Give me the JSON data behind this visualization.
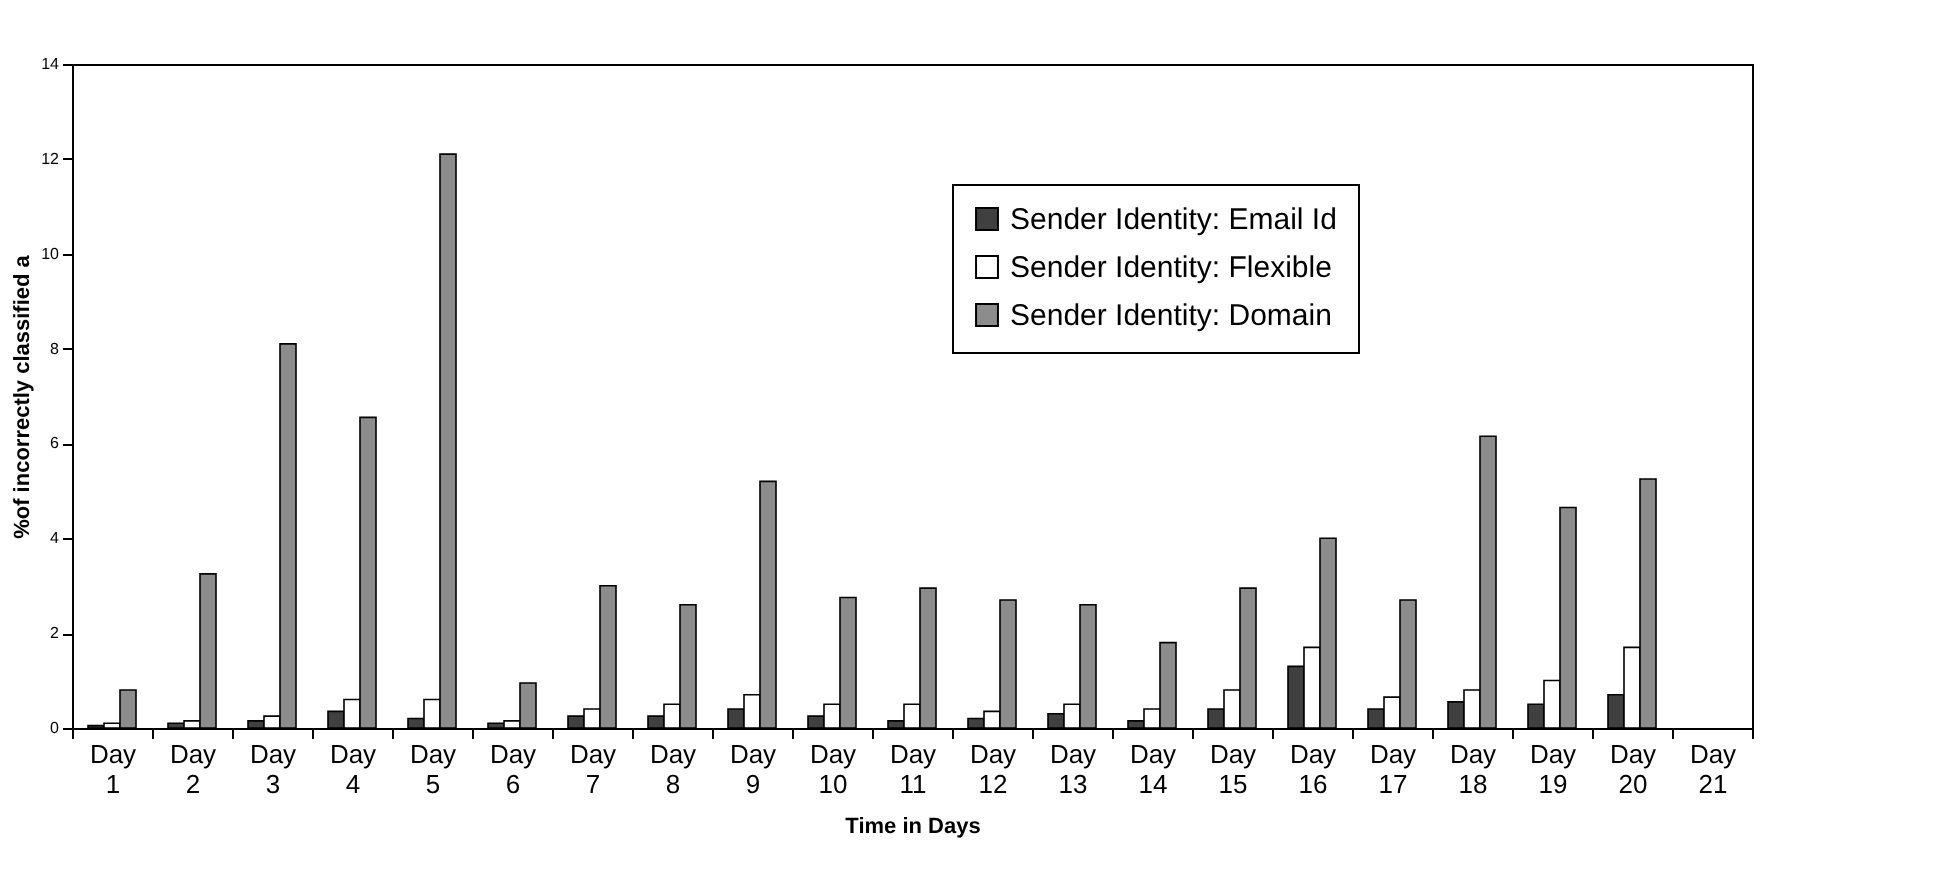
{
  "chart_data": {
    "type": "bar",
    "xlabel": "Time in Days",
    "ylabel": "%of incorrectly classified a",
    "categories": [
      "Day 1",
      "Day 2",
      "Day 3",
      "Day 4",
      "Day 5",
      "Day 6",
      "Day 7",
      "Day 8",
      "Day 9",
      "Day 10",
      "Day 11",
      "Day 12",
      "Day 13",
      "Day 14",
      "Day 15",
      "Day 16",
      "Day 17",
      "Day 18",
      "Day 19",
      "Day 20",
      "Day 21"
    ],
    "series": [
      {
        "name": "Sender Identity: Email Id",
        "color": "#404040",
        "values": [
          0.05,
          0.1,
          0.15,
          0.35,
          0.2,
          0.1,
          0.25,
          0.25,
          0.4,
          0.25,
          0.15,
          0.2,
          0.3,
          0.15,
          0.4,
          1.3,
          0.4,
          0.55,
          0.5,
          0.7,
          null
        ]
      },
      {
        "name": "Sender Identity: Flexible",
        "color": "#ffffff",
        "values": [
          0.1,
          0.15,
          0.25,
          0.6,
          0.6,
          0.15,
          0.4,
          0.5,
          0.7,
          0.5,
          0.5,
          0.35,
          0.5,
          0.4,
          0.8,
          1.7,
          0.65,
          0.8,
          1.0,
          1.7,
          null
        ]
      },
      {
        "name": "Sender Identity: Domain",
        "color": "#8c8c8c",
        "values": [
          0.8,
          3.25,
          8.1,
          6.55,
          12.1,
          0.95,
          3.0,
          2.6,
          5.2,
          2.75,
          2.95,
          2.7,
          2.6,
          1.8,
          2.95,
          4.0,
          2.7,
          6.15,
          4.65,
          5.25,
          null
        ]
      }
    ],
    "ylim": [
      0,
      14
    ],
    "yticks": [
      0,
      2,
      4,
      6,
      8,
      10,
      12,
      14
    ],
    "grid": false,
    "legend": "top right"
  }
}
